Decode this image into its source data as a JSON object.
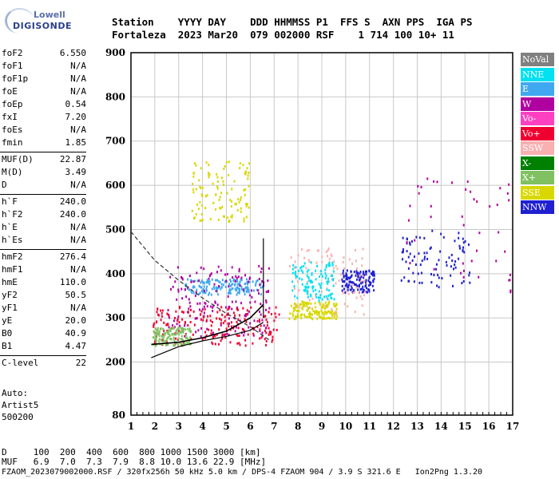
{
  "logo": {
    "top": "Lowell",
    "bottom": "DIGISONDE"
  },
  "header": {
    "line1": "Station    YYYY DAY    DDD HHMMSS P1  FFS S  AXN PPS  IGA PS",
    "line2": "Fortaleza  2023 Mar20  079 002000 RSF    1 714 100 10+ 11"
  },
  "params": [
    {
      "k": "foF2",
      "v": "6.550"
    },
    {
      "k": "foF1",
      "v": "N/A"
    },
    {
      "k": "foF1p",
      "v": "N/A"
    },
    {
      "k": "foE",
      "v": "N/A"
    },
    {
      "k": "foEp",
      "v": "0.54"
    },
    {
      "k": "fxI",
      "v": "7.20"
    },
    {
      "k": "foEs",
      "v": "N/A"
    },
    {
      "k": "fmin",
      "v": "1.85"
    },
    {
      "k": "MUF(D)",
      "v": "22.87"
    },
    {
      "k": "M(D)",
      "v": "3.49"
    },
    {
      "k": "D",
      "v": "N/A"
    },
    {
      "k": "h`F",
      "v": "240.0"
    },
    {
      "k": "h`F2",
      "v": "240.0"
    },
    {
      "k": "h`E",
      "v": "N/A"
    },
    {
      "k": "h`Es",
      "v": "N/A"
    },
    {
      "k": "hmF2",
      "v": "276.4"
    },
    {
      "k": "hmF1",
      "v": "N/A"
    },
    {
      "k": "hmE",
      "v": "110.0"
    },
    {
      "k": "yF2",
      "v": "50.5"
    },
    {
      "k": "yF1",
      "v": "N/A"
    },
    {
      "k": "yE",
      "v": "20.0"
    },
    {
      "k": "B0",
      "v": "40.9"
    },
    {
      "k": "B1",
      "v": "4.47"
    },
    {
      "k": "C-level",
      "v": "22"
    }
  ],
  "auto": {
    "l1": "Auto:",
    "l2": "Artist5",
    "l3": "500200"
  },
  "footer": {
    "d_row": "D     100  200  400  600  800 1000 1500 3000 [km]",
    "muf_row": "MUF   6.9  7.0  7.3  7.9  8.8 10.0 13.6 22.9 [MHz]",
    "file_row": "FZAOM_2023079002000.RSF / 320fx256h 50 kHz 5.0 km / DPS-4 FZAOM 904 / 3.9 S 321.6 E   Ion2Png 1.3.20"
  },
  "legend": [
    {
      "label": "NoVal",
      "color": "#808080"
    },
    {
      "label": "NNE",
      "color": "#00e0f0"
    },
    {
      "label": "E",
      "color": "#40a8f0"
    },
    {
      "label": "W",
      "color": "#b000a0"
    },
    {
      "label": "Vo-",
      "color": "#ff40c0"
    },
    {
      "label": "Vo+",
      "color": "#f00030"
    },
    {
      "label": "SSW",
      "color": "#f8b0b0"
    },
    {
      "label": "X-",
      "color": "#008000"
    },
    {
      "label": "X+",
      "color": "#80c060"
    },
    {
      "label": "SSE",
      "color": "#d8d800"
    },
    {
      "label": "NNW",
      "color": "#2020d0"
    }
  ],
  "chart_data": {
    "type": "scatter",
    "title": "",
    "xlabel": "",
    "ylabel": "",
    "xlim": [
      1,
      17
    ],
    "ylim": [
      80,
      900
    ],
    "x_ticks": [
      1,
      2,
      3,
      4,
      5,
      6,
      7,
      8,
      9,
      10,
      11,
      12,
      13,
      14,
      15,
      16,
      17
    ],
    "y_ticks": [
      80,
      200,
      300,
      400,
      500,
      600,
      700,
      800,
      900
    ],
    "grid": true,
    "legend_position": "right",
    "clusters": [
      {
        "name": "E",
        "x": [
          3.2,
          6.5
        ],
        "y": [
          355,
          390
        ],
        "density": 0.7
      },
      {
        "name": "W",
        "x": [
          2.5,
          6.8
        ],
        "y": [
          260,
          420
        ],
        "density": 0.8
      },
      {
        "name": "Vo+",
        "x": [
          1.9,
          7.2
        ],
        "y": [
          240,
          330
        ],
        "density": 0.9
      },
      {
        "name": "SSE",
        "x": [
          3.5,
          6.0
        ],
        "y": [
          520,
          660
        ],
        "density": 0.5
      },
      {
        "name": "SSE",
        "x": [
          7.6,
          9.6
        ],
        "y": [
          300,
          340
        ],
        "density": 0.7
      },
      {
        "name": "NNW",
        "x": [
          9.8,
          11.2
        ],
        "y": [
          360,
          410
        ],
        "density": 0.6
      },
      {
        "name": "NNW",
        "x": [
          12.3,
          15.2
        ],
        "y": [
          370,
          500
        ],
        "density": 0.4
      },
      {
        "name": "X+",
        "x": [
          1.9,
          3.5
        ],
        "y": [
          240,
          280
        ],
        "density": 0.6
      },
      {
        "name": "SSW",
        "x": [
          7.6,
          10.8
        ],
        "y": [
          310,
          460
        ],
        "density": 0.4
      },
      {
        "name": "NNE",
        "x": [
          7.7,
          9.5
        ],
        "y": [
          340,
          430
        ],
        "density": 0.5
      },
      {
        "name": "W",
        "x": [
          12.5,
          17.0
        ],
        "y": [
          360,
          620
        ],
        "density": 0.2
      }
    ],
    "trace_profile": {
      "x": [
        1.85,
        3.0,
        4.0,
        5.0,
        6.0,
        6.55
      ],
      "y": [
        240,
        245,
        255,
        270,
        300,
        330
      ]
    },
    "trace_hprime": {
      "x": [
        1.85,
        3.0,
        4.0,
        5.0,
        6.0,
        6.55
      ],
      "y": [
        210,
        235,
        248,
        258,
        272,
        290
      ]
    },
    "trace_dashed": {
      "x": [
        1.0,
        2.0,
        3.0,
        4.0,
        5.0,
        6.0,
        6.8
      ],
      "y": [
        495,
        430,
        385,
        345,
        310,
        280,
        250
      ]
    }
  }
}
